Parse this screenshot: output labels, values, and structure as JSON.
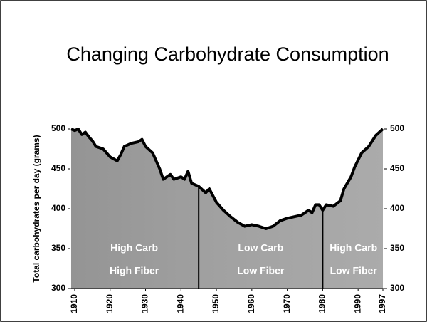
{
  "chart_data": {
    "type": "area",
    "title": "Changing Carbohydrate Consumption",
    "y_label": "Total carbohydrates per day  (grams)",
    "x": [
      1909,
      1910,
      1911,
      1912,
      1913,
      1914,
      1915,
      1916,
      1918,
      1920,
      1922,
      1923,
      1924,
      1926,
      1928,
      1929,
      1930,
      1932,
      1934,
      1935,
      1937,
      1938,
      1940,
      1941,
      1942,
      1943,
      1945,
      1947,
      1948,
      1950,
      1952,
      1954,
      1956,
      1958,
      1960,
      1962,
      1964,
      1966,
      1968,
      1970,
      1972,
      1974,
      1976,
      1977,
      1978,
      1979,
      1980,
      1981,
      1983,
      1985,
      1986,
      1988,
      1989,
      1991,
      1993,
      1995,
      1997
    ],
    "y": [
      500,
      498,
      500,
      493,
      496,
      490,
      485,
      478,
      475,
      465,
      460,
      468,
      478,
      482,
      484,
      487,
      478,
      470,
      450,
      437,
      443,
      437,
      440,
      437,
      447,
      432,
      428,
      420,
      425,
      408,
      398,
      390,
      383,
      378,
      380,
      378,
      375,
      378,
      385,
      388,
      390,
      392,
      398,
      395,
      405,
      405,
      398,
      405,
      403,
      410,
      425,
      440,
      452,
      470,
      478,
      492,
      500
    ],
    "color": "#000000",
    "fill": "#9e9e9e",
    "xlim": [
      1908.6,
      1997.4
    ],
    "xticks": [
      1910,
      1920,
      1930,
      1940,
      1950,
      1960,
      1970,
      1980,
      1990,
      1997
    ],
    "ylim": [
      300,
      500
    ],
    "yticks": [
      300,
      350,
      400,
      450,
      500
    ],
    "y2lim": [
      300,
      500
    ],
    "y2ticks": [
      300,
      350,
      400,
      450,
      500
    ],
    "dividers": [
      1945,
      1980
    ],
    "regions": [
      {
        "labels": [
          "High Carb",
          "High Fiber"
        ]
      },
      {
        "labels": [
          "Low Carb",
          "Low Fiber"
        ]
      },
      {
        "labels": [
          "High Carb",
          "Low Fiber"
        ]
      }
    ]
  }
}
